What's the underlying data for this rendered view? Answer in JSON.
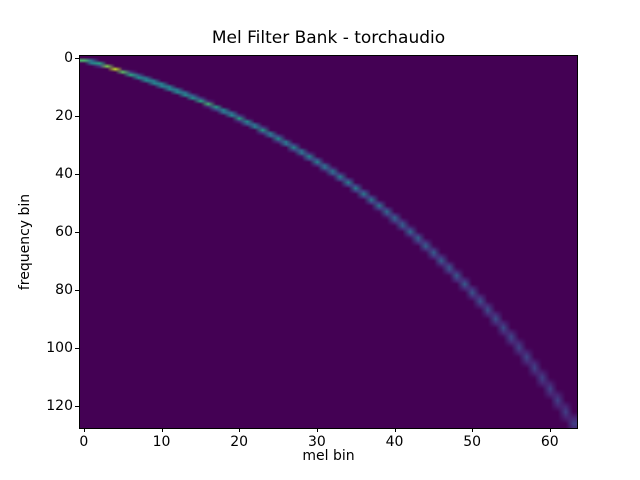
{
  "figure": {
    "background_color": "#ffffff",
    "text_color": "#000000",
    "spine_color": "#000000"
  },
  "chart_data": {
    "type": "heatmap",
    "title": "Mel Filter Bank - torchaudio",
    "xlabel": "mel bin",
    "ylabel": "frequency bin",
    "x_ticks": [
      0,
      10,
      20,
      30,
      40,
      50,
      60
    ],
    "y_ticks": [
      0,
      20,
      40,
      60,
      80,
      100,
      120
    ],
    "xlim": [
      -0.5,
      63.5
    ],
    "ylim": [
      127.5,
      -0.5
    ],
    "n_mel_bins": 64,
    "n_freq_bins": 128,
    "colormap": "viridis",
    "background_value_color": "#440154",
    "legend": "none",
    "grid": false,
    "normalization": "triangular filters; amplitude proportional to 1/filter-width, normalized so narrowest (first) filter peaks at 1.0",
    "filter_first_edge_bin": 0,
    "filter_last_edge_bin": 130.1,
    "filter_peak_freq_bins": [
      0.75,
      1.53,
      2.32,
      3.14,
      3.97,
      4.84,
      5.72,
      6.63,
      7.56,
      8.52,
      9.5,
      10.51,
      11.55,
      12.61,
      13.71,
      14.83,
      15.99,
      17.17,
      18.39,
      19.64,
      20.93,
      22.25,
      23.6,
      24.99,
      26.42,
      27.89,
      29.4,
      30.95,
      32.54,
      34.18,
      35.85,
      37.58,
      39.35,
      41.17,
      43.04,
      44.95,
      46.93,
      48.95,
      51.03,
      53.16,
      55.36,
      57.61,
      59.92,
      62.3,
      64.74,
      67.24,
      69.82,
      72.46,
      75.18,
      77.96,
      80.83,
      83.77,
      86.79,
      89.9,
      93.08,
      96.36,
      99.72,
      103.17,
      106.72,
      110.36,
      114.11,
      117.95,
      121.9,
      125.95
    ]
  }
}
